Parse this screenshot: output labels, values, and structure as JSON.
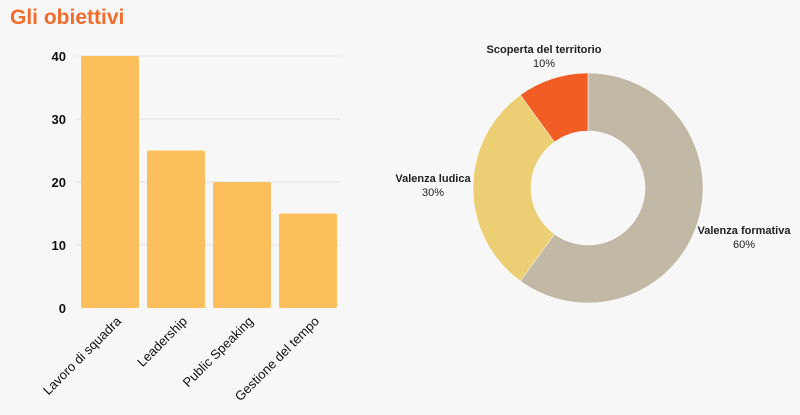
{
  "page": {
    "title": "Gli obiettivi"
  },
  "colors": {
    "title": "#f26c2c",
    "bar": "#fdbf5c",
    "grid": "#e0e0e0",
    "axis_text": "#111111"
  },
  "chart_data": [
    {
      "type": "bar",
      "categories": [
        "Lavoro di squadra",
        "Leadership",
        "Public Speaking",
        "Gestione del tempo"
      ],
      "values": [
        40,
        25,
        20,
        15
      ],
      "title": "",
      "xlabel": "",
      "ylabel": "",
      "ylim": [
        0,
        40
      ],
      "yticks": [
        0,
        10,
        20,
        30,
        40
      ],
      "grid": true,
      "color": "#fdbf5c"
    },
    {
      "type": "pie",
      "donut": true,
      "slices": [
        {
          "label": "Valenza formativa",
          "value": 60,
          "value_label": "60%",
          "color": "#c1b9a5"
        },
        {
          "label": "Valenza ludica",
          "value": 30,
          "value_label": "30%",
          "color": "#ecce74"
        },
        {
          "label": "Scoperta del territorio",
          "value": 10,
          "value_label": "10%",
          "color": "#f25c25"
        }
      ],
      "start": "top",
      "direction": "clockwise"
    }
  ]
}
